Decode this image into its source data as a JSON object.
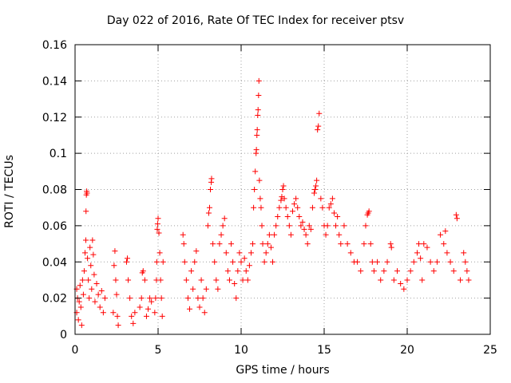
{
  "chart_data": {
    "type": "scatter",
    "title": "Day 022 of 2016, Rate Of TEC Index for receiver ptsv",
    "xlabel": "GPS time / hours",
    "ylabel": "ROTI / TECUs",
    "xlim": [
      0,
      25
    ],
    "ylim": [
      0,
      0.16
    ],
    "xticks": [
      0,
      5,
      10,
      15,
      20,
      25
    ],
    "xtick_labels": [
      "0",
      "5",
      "10",
      "15",
      "20",
      "25"
    ],
    "yticks": [
      0,
      0.02,
      0.04,
      0.06,
      0.08,
      0.1,
      0.12,
      0.14,
      0.16
    ],
    "ytick_labels": [
      "0",
      "0.02",
      "0.04",
      "0.06",
      "0.08",
      "0.1",
      "0.12",
      "0.14",
      "0.16"
    ],
    "grid": true,
    "marker": "+",
    "series": [
      {
        "name": "ROTI",
        "color": "#ff0000",
        "points": [
          [
            0.1,
            0.012
          ],
          [
            0.1,
            0.025
          ],
          [
            0.15,
            0.02
          ],
          [
            0.2,
            0.008
          ],
          [
            0.25,
            0.018
          ],
          [
            0.3,
            0.027
          ],
          [
            0.35,
            0.015
          ],
          [
            0.4,
            0.005
          ],
          [
            0.45,
            0.03
          ],
          [
            0.5,
            0.022
          ],
          [
            0.55,
            0.035
          ],
          [
            0.6,
            0.045
          ],
          [
            0.65,
            0.052
          ],
          [
            0.66,
            0.068
          ],
          [
            0.68,
            0.077
          ],
          [
            0.7,
            0.079
          ],
          [
            0.72,
            0.078
          ],
          [
            0.75,
            0.042
          ],
          [
            0.8,
            0.03
          ],
          [
            0.85,
            0.02
          ],
          [
            0.9,
            0.048
          ],
          [
            0.95,
            0.038
          ],
          [
            1.0,
            0.025
          ],
          [
            1.05,
            0.052
          ],
          [
            1.1,
            0.044
          ],
          [
            1.15,
            0.033
          ],
          [
            1.2,
            0.018
          ],
          [
            1.3,
            0.028
          ],
          [
            1.4,
            0.022
          ],
          [
            1.5,
            0.015
          ],
          [
            1.6,
            0.024
          ],
          [
            1.7,
            0.012
          ],
          [
            1.8,
            0.02
          ],
          [
            2.3,
            0.012
          ],
          [
            2.35,
            0.038
          ],
          [
            2.4,
            0.046
          ],
          [
            2.45,
            0.03
          ],
          [
            2.5,
            0.022
          ],
          [
            2.55,
            0.01
          ],
          [
            2.6,
            0.005
          ],
          [
            3.1,
            0.04
          ],
          [
            3.15,
            0.042
          ],
          [
            3.2,
            0.03
          ],
          [
            3.3,
            0.02
          ],
          [
            3.4,
            0.01
          ],
          [
            3.5,
            0.006
          ],
          [
            3.6,
            0.012
          ],
          [
            3.9,
            0.015
          ],
          [
            4.0,
            0.02
          ],
          [
            4.05,
            0.034
          ],
          [
            4.1,
            0.035
          ],
          [
            4.2,
            0.03
          ],
          [
            4.3,
            0.01
          ],
          [
            4.4,
            0.014
          ],
          [
            4.5,
            0.02
          ],
          [
            4.6,
            0.018
          ],
          [
            4.8,
            0.012
          ],
          [
            4.85,
            0.02
          ],
          [
            4.9,
            0.03
          ],
          [
            4.92,
            0.04
          ],
          [
            4.95,
            0.058
          ],
          [
            4.97,
            0.061
          ],
          [
            5.0,
            0.064
          ],
          [
            5.05,
            0.056
          ],
          [
            5.1,
            0.045
          ],
          [
            5.15,
            0.03
          ],
          [
            5.2,
            0.02
          ],
          [
            5.25,
            0.01
          ],
          [
            5.3,
            0.04
          ],
          [
            6.5,
            0.055
          ],
          [
            6.55,
            0.05
          ],
          [
            6.6,
            0.04
          ],
          [
            6.7,
            0.03
          ],
          [
            6.8,
            0.02
          ],
          [
            6.9,
            0.014
          ],
          [
            7.0,
            0.035
          ],
          [
            7.1,
            0.025
          ],
          [
            7.2,
            0.04
          ],
          [
            7.3,
            0.046
          ],
          [
            7.4,
            0.02
          ],
          [
            7.5,
            0.015
          ],
          [
            7.6,
            0.03
          ],
          [
            7.7,
            0.02
          ],
          [
            7.8,
            0.012
          ],
          [
            7.9,
            0.025
          ],
          [
            8.0,
            0.06
          ],
          [
            8.05,
            0.067
          ],
          [
            8.1,
            0.07
          ],
          [
            8.15,
            0.08
          ],
          [
            8.2,
            0.084
          ],
          [
            8.22,
            0.086
          ],
          [
            8.3,
            0.05
          ],
          [
            8.4,
            0.04
          ],
          [
            8.5,
            0.03
          ],
          [
            8.6,
            0.025
          ],
          [
            8.7,
            0.05
          ],
          [
            8.8,
            0.055
          ],
          [
            8.9,
            0.06
          ],
          [
            9.0,
            0.064
          ],
          [
            9.1,
            0.045
          ],
          [
            9.2,
            0.035
          ],
          [
            9.3,
            0.03
          ],
          [
            9.4,
            0.05
          ],
          [
            9.5,
            0.04
          ],
          [
            9.6,
            0.028
          ],
          [
            9.7,
            0.02
          ],
          [
            9.8,
            0.035
          ],
          [
            9.9,
            0.045
          ],
          [
            10.0,
            0.04
          ],
          [
            10.1,
            0.03
          ],
          [
            10.2,
            0.042
          ],
          [
            10.3,
            0.035
          ],
          [
            10.4,
            0.03
          ],
          [
            10.5,
            0.038
          ],
          [
            10.6,
            0.045
          ],
          [
            10.7,
            0.05
          ],
          [
            10.75,
            0.07
          ],
          [
            10.8,
            0.08
          ],
          [
            10.85,
            0.09
          ],
          [
            10.9,
            0.1
          ],
          [
            10.92,
            0.102
          ],
          [
            10.95,
            0.11
          ],
          [
            10.97,
            0.113
          ],
          [
            11.0,
            0.121
          ],
          [
            11.02,
            0.124
          ],
          [
            11.05,
            0.132
          ],
          [
            11.07,
            0.14
          ],
          [
            11.1,
            0.085
          ],
          [
            11.15,
            0.075
          ],
          [
            11.2,
            0.07
          ],
          [
            11.25,
            0.06
          ],
          [
            11.3,
            0.05
          ],
          [
            11.4,
            0.04
          ],
          [
            11.5,
            0.045
          ],
          [
            11.6,
            0.05
          ],
          [
            11.7,
            0.055
          ],
          [
            11.8,
            0.048
          ],
          [
            11.9,
            0.04
          ],
          [
            12.0,
            0.055
          ],
          [
            12.1,
            0.06
          ],
          [
            12.2,
            0.065
          ],
          [
            12.3,
            0.07
          ],
          [
            12.4,
            0.074
          ],
          [
            12.45,
            0.076
          ],
          [
            12.5,
            0.08
          ],
          [
            12.55,
            0.082
          ],
          [
            12.6,
            0.075
          ],
          [
            12.7,
            0.07
          ],
          [
            12.8,
            0.065
          ],
          [
            12.9,
            0.06
          ],
          [
            13.0,
            0.055
          ],
          [
            13.1,
            0.068
          ],
          [
            13.2,
            0.072
          ],
          [
            13.3,
            0.075
          ],
          [
            13.4,
            0.07
          ],
          [
            13.5,
            0.065
          ],
          [
            13.6,
            0.06
          ],
          [
            13.7,
            0.062
          ],
          [
            13.8,
            0.058
          ],
          [
            13.9,
            0.055
          ],
          [
            14.0,
            0.05
          ],
          [
            14.1,
            0.06
          ],
          [
            14.2,
            0.058
          ],
          [
            14.3,
            0.07
          ],
          [
            14.4,
            0.078
          ],
          [
            14.45,
            0.08
          ],
          [
            14.5,
            0.082
          ],
          [
            14.55,
            0.085
          ],
          [
            14.6,
            0.113
          ],
          [
            14.65,
            0.115
          ],
          [
            14.7,
            0.122
          ],
          [
            14.8,
            0.075
          ],
          [
            14.9,
            0.07
          ],
          [
            15.0,
            0.06
          ],
          [
            15.1,
            0.055
          ],
          [
            15.2,
            0.06
          ],
          [
            15.3,
            0.07
          ],
          [
            15.4,
            0.072
          ],
          [
            15.5,
            0.075
          ],
          [
            15.6,
            0.067
          ],
          [
            15.7,
            0.06
          ],
          [
            15.8,
            0.065
          ],
          [
            15.9,
            0.055
          ],
          [
            16.0,
            0.05
          ],
          [
            16.2,
            0.06
          ],
          [
            16.4,
            0.05
          ],
          [
            16.6,
            0.045
          ],
          [
            16.8,
            0.04
          ],
          [
            17.0,
            0.04
          ],
          [
            17.2,
            0.035
          ],
          [
            17.4,
            0.05
          ],
          [
            17.5,
            0.06
          ],
          [
            17.6,
            0.066
          ],
          [
            17.65,
            0.067
          ],
          [
            17.7,
            0.068
          ],
          [
            17.8,
            0.05
          ],
          [
            17.9,
            0.04
          ],
          [
            18.0,
            0.035
          ],
          [
            18.2,
            0.04
          ],
          [
            18.4,
            0.03
          ],
          [
            18.6,
            0.035
          ],
          [
            18.8,
            0.04
          ],
          [
            19.0,
            0.05
          ],
          [
            19.05,
            0.048
          ],
          [
            19.2,
            0.03
          ],
          [
            19.4,
            0.035
          ],
          [
            19.6,
            0.028
          ],
          [
            19.8,
            0.025
          ],
          [
            20.0,
            0.03
          ],
          [
            20.2,
            0.035
          ],
          [
            20.4,
            0.04
          ],
          [
            20.6,
            0.045
          ],
          [
            20.7,
            0.05
          ],
          [
            20.8,
            0.042
          ],
          [
            20.9,
            0.03
          ],
          [
            21.0,
            0.05
          ],
          [
            21.2,
            0.048
          ],
          [
            21.4,
            0.04
          ],
          [
            21.6,
            0.035
          ],
          [
            21.8,
            0.04
          ],
          [
            22.0,
            0.055
          ],
          [
            22.2,
            0.05
          ],
          [
            22.3,
            0.057
          ],
          [
            22.4,
            0.045
          ],
          [
            22.6,
            0.04
          ],
          [
            22.8,
            0.035
          ],
          [
            22.95,
            0.066
          ],
          [
            23.0,
            0.064
          ],
          [
            23.2,
            0.03
          ],
          [
            23.4,
            0.045
          ],
          [
            23.5,
            0.04
          ],
          [
            23.6,
            0.035
          ],
          [
            23.7,
            0.03
          ]
        ]
      }
    ]
  }
}
